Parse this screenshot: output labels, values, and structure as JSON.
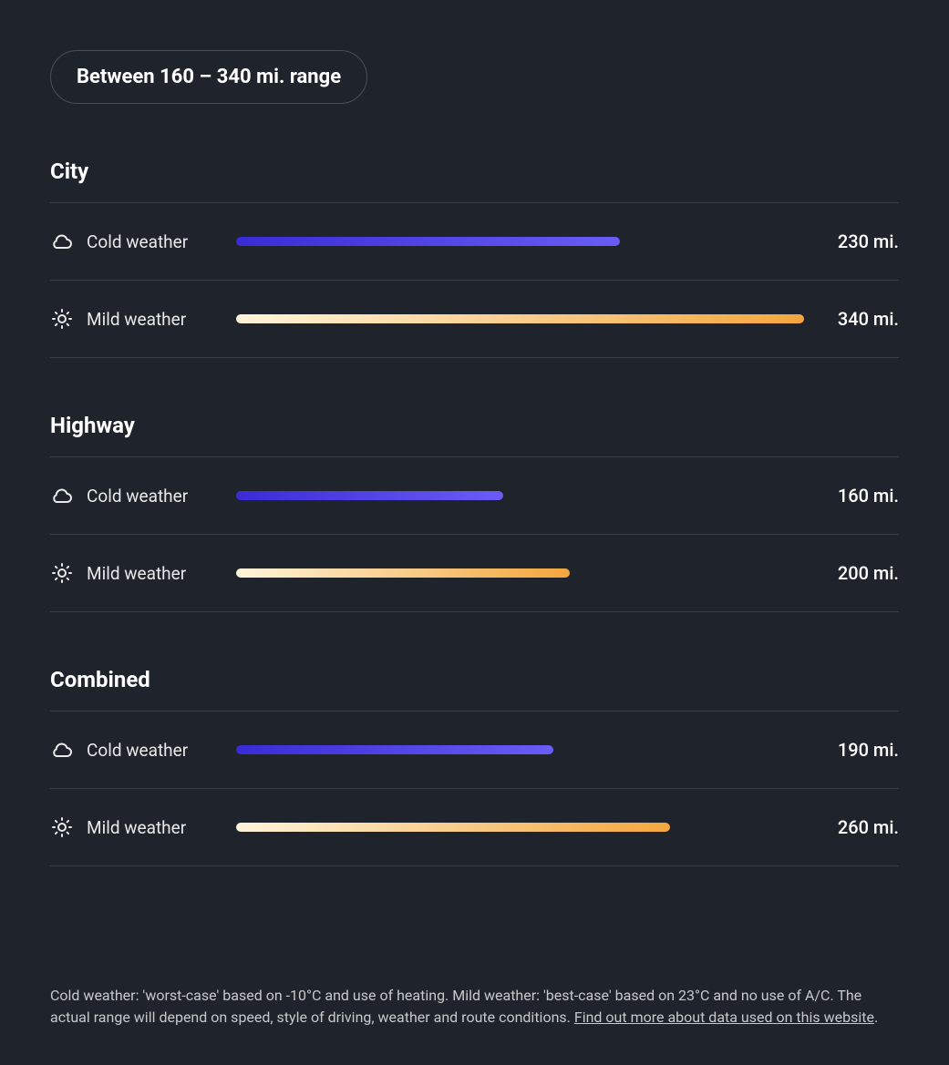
{
  "colors": {
    "background": "#1f232b",
    "text_primary": "#ffffff",
    "text_secondary": "#e8e9eb",
    "text_footnote": "#c6c8cc",
    "divider": "#3a3f48",
    "pill_border": "#4a4f58",
    "cold_gradient_start": "#3b2bd6",
    "cold_gradient_end": "#6a5cf5",
    "mild_gradient_start": "#fef4da",
    "mild_gradient_end": "#f4a63d"
  },
  "range_summary": "Between 160 – 340 mi. range",
  "max_value": 340,
  "sections": [
    {
      "title": "City",
      "rows": [
        {
          "icon": "cloud",
          "label": "Cold weather",
          "value": 230,
          "display": "230 mi.",
          "gradient": "cold"
        },
        {
          "icon": "sun",
          "label": "Mild weather",
          "value": 340,
          "display": "340 mi.",
          "gradient": "mild"
        }
      ]
    },
    {
      "title": "Highway",
      "rows": [
        {
          "icon": "cloud",
          "label": "Cold weather",
          "value": 160,
          "display": "160 mi.",
          "gradient": "cold"
        },
        {
          "icon": "sun",
          "label": "Mild weather",
          "value": 200,
          "display": "200 mi.",
          "gradient": "mild"
        }
      ]
    },
    {
      "title": "Combined",
      "rows": [
        {
          "icon": "cloud",
          "label": "Cold weather",
          "value": 190,
          "display": "190 mi.",
          "gradient": "cold"
        },
        {
          "icon": "sun",
          "label": "Mild weather",
          "value": 260,
          "display": "260 mi.",
          "gradient": "mild"
        }
      ]
    }
  ],
  "footnote": {
    "text_before": "Cold weather: 'worst-case' based on -10°C and use of heating. Mild weather: 'best-case' based on 23°C and no use of A/C. The actual range will depend on speed, style of driving, weather and route conditions. ",
    "link_text": "Find out more about data used on this website",
    "text_after": "."
  }
}
